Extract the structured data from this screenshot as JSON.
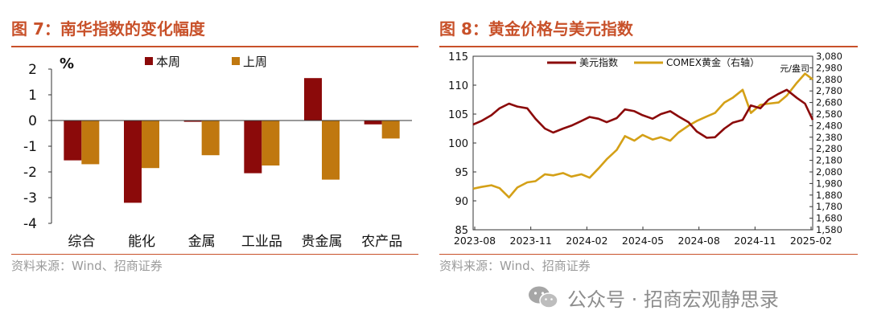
{
  "left": {
    "title": "图 7：南华指数的变化幅度",
    "source": "资料来源：Wind、招商证券",
    "chart_data": {
      "type": "bar",
      "ylabel": "%",
      "ylim": [
        -4,
        2
      ],
      "yticks": [
        2,
        1,
        0,
        -1,
        -2,
        -3,
        -4
      ],
      "categories": [
        "综合",
        "能化",
        "金属",
        "工业品",
        "贵金属",
        "农产品"
      ],
      "series": [
        {
          "name": "本周",
          "color": "#8b0a0a",
          "values": [
            -1.55,
            -3.2,
            -0.05,
            -2.05,
            1.65,
            -0.15
          ]
        },
        {
          "name": "上周",
          "color": "#c0780f",
          "values": [
            -1.7,
            -1.85,
            -1.35,
            -1.75,
            -2.3,
            -0.7
          ]
        }
      ],
      "legend": "top"
    }
  },
  "right": {
    "title": "图 8：黄金价格与美元指数",
    "source": "资料来源：Wind、招商证券",
    "chart_data": {
      "type": "line",
      "x_tick_labels": [
        "2023-08",
        "2023-11",
        "2024-02",
        "2024-05",
        "2024-08",
        "2024-11",
        "2025-02"
      ],
      "left_axis": {
        "ylim": [
          85,
          115
        ],
        "ticks": [
          115,
          110,
          105,
          100,
          95,
          90,
          85
        ]
      },
      "right_axis": {
        "ylim": [
          1580,
          3080
        ],
        "ticks": [
          "3,080",
          "2,980",
          "2,880",
          "2,780",
          "2,680",
          "2,580",
          "2,480",
          "2,380",
          "2,280",
          "2,180",
          "2,080",
          "1,980",
          "1,880",
          "1,780",
          "1,680",
          "1,580"
        ],
        "unit": "元/盎司"
      },
      "series": [
        {
          "name": "美元指数",
          "axis": "left",
          "color": "#8b0a0a",
          "x": [
            "2023-08-01",
            "2023-08-15",
            "2023-09-01",
            "2023-09-15",
            "2023-10-01",
            "2023-10-15",
            "2023-11-01",
            "2023-11-15",
            "2023-12-01",
            "2023-12-15",
            "2024-01-01",
            "2024-01-15",
            "2024-02-01",
            "2024-02-15",
            "2024-03-01",
            "2024-03-15",
            "2024-04-01",
            "2024-04-15",
            "2024-05-01",
            "2024-05-15",
            "2024-06-01",
            "2024-06-15",
            "2024-07-01",
            "2024-07-15",
            "2024-08-01",
            "2024-08-15",
            "2024-09-01",
            "2024-09-15",
            "2024-10-01",
            "2024-10-15",
            "2024-11-01",
            "2024-11-15",
            "2024-12-01",
            "2024-12-15",
            "2025-01-01",
            "2025-01-15",
            "2025-02-01",
            "2025-02-15",
            "2025-02-28"
          ],
          "values": [
            103.2,
            103.8,
            104.8,
            106.0,
            106.8,
            106.3,
            106.0,
            104.2,
            102.5,
            101.8,
            102.5,
            103.0,
            103.8,
            104.5,
            104.2,
            103.6,
            104.3,
            105.8,
            105.5,
            104.8,
            104.2,
            105.0,
            105.5,
            104.6,
            103.6,
            102.0,
            100.9,
            101.0,
            102.5,
            103.5,
            104.0,
            106.5,
            106.0,
            107.5,
            108.5,
            109.2,
            107.8,
            106.8,
            104.0
          ]
        },
        {
          "name": "COMEX黄金（右轴）",
          "axis": "right",
          "color": "#d4a017",
          "x": [
            "2023-08-01",
            "2023-08-15",
            "2023-09-01",
            "2023-09-15",
            "2023-10-01",
            "2023-10-15",
            "2023-11-01",
            "2023-11-15",
            "2023-12-01",
            "2023-12-15",
            "2024-01-01",
            "2024-01-15",
            "2024-02-01",
            "2024-02-15",
            "2024-03-01",
            "2024-03-15",
            "2024-04-01",
            "2024-04-15",
            "2024-05-01",
            "2024-05-15",
            "2024-06-01",
            "2024-06-15",
            "2024-07-01",
            "2024-07-15",
            "2024-08-01",
            "2024-08-15",
            "2024-09-01",
            "2024-09-15",
            "2024-10-01",
            "2024-10-15",
            "2024-11-01",
            "2024-11-15",
            "2024-12-01",
            "2024-12-15",
            "2025-01-01",
            "2025-01-15",
            "2025-02-01",
            "2025-02-15",
            "2025-02-28"
          ],
          "values": [
            1935,
            1950,
            1965,
            1940,
            1860,
            1945,
            1990,
            2000,
            2060,
            2050,
            2070,
            2040,
            2060,
            2030,
            2110,
            2190,
            2270,
            2390,
            2350,
            2400,
            2360,
            2380,
            2350,
            2420,
            2480,
            2520,
            2560,
            2590,
            2680,
            2720,
            2790,
            2590,
            2660,
            2670,
            2680,
            2740,
            2850,
            2930,
            2880
          ]
        }
      ],
      "legend": "top-left"
    }
  },
  "watermark": {
    "text": "公众号 · 招商宏观静思录"
  }
}
